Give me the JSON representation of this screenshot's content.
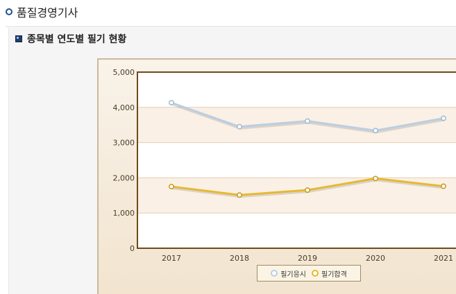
{
  "page": {
    "title": "품질경영기사"
  },
  "section": {
    "title": "종목별 연도별 필기 현황"
  },
  "colors": {
    "series_apply": "#b9cfe2",
    "series_pass": "#e6b92f",
    "axis": "#6e4a1b"
  },
  "chart_data": {
    "type": "line",
    "title": "",
    "xlabel": "",
    "ylabel": "",
    "categories": [
      "2017",
      "2018",
      "2019",
      "2020",
      "2021"
    ],
    "y_ticks": [
      "0",
      "1,000",
      "2,000",
      "3,000",
      "4,000",
      "5,000"
    ],
    "ylim": [
      0,
      5000
    ],
    "grid": true,
    "legend": "bottom-center",
    "series": [
      {
        "name": "필기응시",
        "values": [
          4130,
          3450,
          3610,
          3340,
          3690
        ]
      },
      {
        "name": "필기합격",
        "values": [
          1750,
          1510,
          1650,
          1980,
          1760
        ]
      }
    ]
  }
}
